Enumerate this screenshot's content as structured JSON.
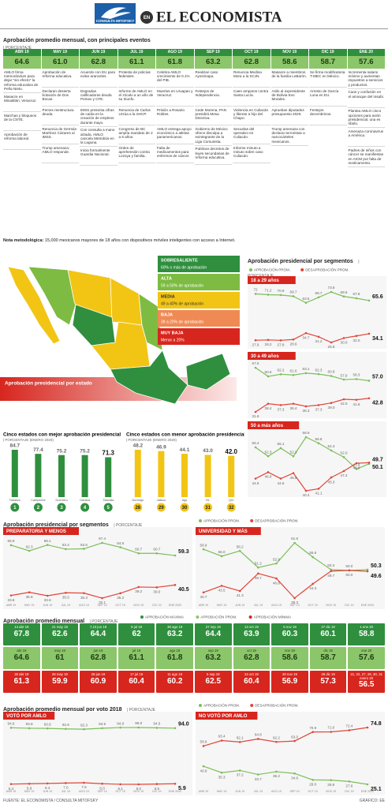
{
  "header": {
    "logo": "CONSULTA MITOFSKY",
    "en": "EN",
    "brand": "EL ECONOMISTA"
  },
  "events_table": {
    "title": "Aprobación promedio mensual, con principales eventos",
    "subtitle": "| PORCENTAJE",
    "months": [
      "ABR 19",
      "MAY 19",
      "JUN 19",
      "JUL 19",
      "AGO 19",
      "SEP 19",
      "OCT 19",
      "NOV 19",
      "DIC 19",
      "ENE 20"
    ],
    "values": [
      "64.6",
      "61.0",
      "62.8",
      "61.1",
      "61.8",
      "63.2",
      "62.8",
      "58.6",
      "58.7",
      "57.6"
    ],
    "events": [
      [
        "AMLO firma memorándum para dejar \"sin efecto\" la reforma educativa de Peña Nieto.",
        "Masacre en Minatitlán, Veracruz.",
        "Marchas y bloqueos de la CNTE.",
        "Aprobación de reforma laboral."
      ],
      [
        "Aprobación de reforma educativa.",
        "Declaran desierta licitación de Dos Bocas.",
        "Pemex reestructura deuda.",
        "Renuncia de Germán Martínez Cázares al IMSS.",
        "Trump amenaza; AMLO responde."
      ],
      [
        "Acuerdo con EU para evitar aranceles.",
        "Degradan calificadoras deuda Pemex y CFE.",
        "IMSS presenta cifras de caída en la creación de empleos durante mayo.",
        "Con consulta a mano alzada, AMLO cancela Metrobús en la Laguna.",
        "Inicia formalmente Guardia Nacional."
      ],
      [
        "Protesta de policías federales.",
        "Informe de AMLO en el zócalo a un año de su triunfo.",
        "Renuncia de Carlos Urzúa a la SHCP.",
        "Congreso de BC amplía mandato de 2 a 5 años.",
        "Orden de aprehensión contra Lozoya y familia."
      ],
      [
        "Celebra AMLO crecimiento de 0.1% del PIB.",
        "Muertos en Uruapan y Veracruz.",
        "Prisión a Rosario Robles.",
        "AMLO entrega apoyo económico a atletas panamericanos.",
        "Falta de medicamentos para enfermos de cáncer."
      ],
      [
        "Realizan caso Ayotzinapa.",
        "Festejos de Independencia.",
        "Cede Morena, PAN presidirá Mesa Directiva.",
        "Gobierno de México ofrece disculpa a exintegrante de la Liga Comunista.",
        "Publican decretos de leyes secundarias de reforma educativa."
      ],
      [
        "Renuncia Medina Mora a la SCJN.",
        "Caen amparos contra Santa Lucía.",
        "Violencia en Culiacán y liberan a hijo del Chapo.",
        "Secuelas del operativo en Culiacán.",
        "Informe minuto a minuto sobre caso Culiacán."
      ],
      [
        "Masacre a miembros de la familia LeBarón.",
        "Asilo al expresidente de Bolivia Evo Morales.",
        "Aprueban diputados presupuesto 2020.",
        "Trump amenaza con declarar terroristas a narcocárteles mexicanos."
      ],
      [
        "Se firma modificatoria T-MEC en México.",
        "Arresto de García Luna en EU.",
        "Festejos decembrinos."
      ],
      [
        "Incrementa salario mínimo y aumentan impuestos a servicios y productos.",
        "Caos y confusión en el arranque del Insabi.",
        "Plantea AMLO cinco opciones para avión presidencial, una es rifarlo.",
        "Amenaza coronavirus a América.",
        "Padres de niños con cáncer se manifiestan en AICM por falta de medicamento."
      ]
    ]
  },
  "note": {
    "label": "Nota metodológica:",
    "text": "15,000 mexicanos mayores de 18 años con dispositivos móviles inteligentes con acceso a Internet."
  },
  "map": {
    "title": "Aprobación presidencial por estado",
    "legend": [
      {
        "name": "SOBRESALIENTE",
        "range": "60% o más de aprobación",
        "color": "#2f8f3e"
      },
      {
        "name": "ALTA",
        "range": "59 a 50% de aprobación",
        "color": "#7dbb42"
      },
      {
        "name": "MEDIA",
        "range": "49 a 40% de aprobación",
        "color": "#f2c515"
      },
      {
        "name": "BAJA",
        "range": "39 a 20% de aprobación",
        "color": "#f08a55"
      },
      {
        "name": "MUY BAJA",
        "range": "Menor a 20%",
        "color": "#d7261e"
      }
    ]
  },
  "chart_data": [
    {
      "type": "line",
      "title": "Aprobación presidencial por segmentos",
      "subtitle": "| PORCENTAJE",
      "panel": "18 a 29 años",
      "series": [
        {
          "name": "APROBACIÓN PROM.",
          "color": "#7cbf5a",
          "values": [
            72,
            71.2,
            70.9,
            69.7,
            63.5,
            68.7,
            73.8,
            69.5,
            67.8,
            65.6
          ]
        },
        {
          "name": "DESAPROBACIÓN PROM.",
          "color": "#e0463a",
          "values": [
            27.9,
            28.2,
            27.8,
            28.6,
            34.7,
            31.2,
            25.8,
            30.0,
            32.0,
            34.1
          ],
          "value_labels": [
            "27.9",
            "28.2",
            "27.8",
            "28.6",
            "34.7",
            "31.2",
            "25.8",
            "30.0",
            "32.0",
            "34.1"
          ]
        }
      ]
    },
    {
      "type": "line",
      "panel": "30 a 49 años",
      "series": [
        {
          "name": "APROBACIÓN PROM.",
          "color": "#7cbf5a",
          "values": [
            67.5,
            60.5,
            62.2,
            61.6,
            63.1,
            62.3,
            60.8,
            57.9,
            58.3,
            57.0
          ],
          "value_labels": [
            "67.5",
            "60.5",
            "62.2",
            "61.6",
            "63.1",
            "62.3",
            "60.8",
            "57.9",
            "58.3",
            "57.0"
          ]
        },
        {
          "name": "DESAPROBACIÓN PROM.",
          "color": "#e0463a",
          "values": [
            31.8,
            38.4,
            37.3,
            38.4,
            36.3,
            37.3,
            39.0,
            42.0,
            41.6,
            42.8
          ],
          "value_labels": [
            "31.8",
            "38.4",
            "37.3",
            "38.4",
            "36.3",
            "37.3",
            "39.0",
            "42.0",
            "41.6",
            "42.8"
          ]
        }
      ]
    },
    {
      "type": "line",
      "panel": "50 a más años",
      "series": [
        {
          "name": "APROBACIÓN PROM.",
          "color": "#7cbf5a",
          "values": [
            55.4,
            52.3,
            55.1,
            52.3,
            58.9,
            56.8,
            54.3,
            52.0,
            47.9,
            49.7
          ],
          "value_labels": [
            "55.4",
            "52.3",
            "55.1",
            "52.3",
            "58.9",
            "56.8",
            "54.3",
            "52.0",
            "47.9",
            "49.7"
          ]
        },
        {
          "name": "DESAPROBACIÓN PROM.",
          "color": "#e0463a",
          "values": [
            44.6,
            46.8,
            44.6,
            46.5,
            40.4,
            41.1,
            45.0,
            47.2,
            49.9,
            50.1
          ],
          "value_labels": [
            "44.6",
            "46.8",
            "44.6",
            "46.5",
            "40.4",
            "41.1",
            "45.0",
            "47.2",
            "49.9",
            "50.1"
          ]
        }
      ]
    },
    {
      "type": "bar",
      "title": "Cinco estados con mejor aprobación presidencial",
      "subtitle": "| PORCENTAJE (ENERO 2020)",
      "categories": [
        "Tabasco",
        "Campeche",
        "Guerrero",
        "Oaxaca",
        "Tlaxcala"
      ],
      "ranks": [
        1,
        2,
        3,
        4,
        5
      ],
      "values": [
        84.7,
        77.4,
        75.2,
        75.2,
        71.3
      ],
      "color": "#2f8f3e"
    },
    {
      "type": "bar",
      "title": "Cinco estados con menor aprobación presidencial",
      "subtitle": "| PORCENTAJE (ENERO 2020)",
      "categories": [
        "Durango",
        "Jalisco",
        "Ags",
        "NL",
        "Qro"
      ],
      "ranks": [
        28,
        29,
        30,
        31,
        32
      ],
      "values": [
        48.2,
        46.9,
        44.1,
        43.0,
        42.0
      ],
      "value_labels": [
        "48.2",
        "46.9",
        "44.1",
        "43.0",
        "42.0"
      ],
      "color": "#f2c515"
    },
    {
      "type": "line",
      "title": "Aprobación presidencial por segmentos",
      "subtitle": "| PORCENTAJE",
      "panel": "PREPARATORIA Y MENOS",
      "categories": [
        "ABR 19",
        "MAY 19",
        "JUN 19",
        "JUL 19",
        "AGO 19",
        "SEP 19",
        "OCT 19",
        "NOV 19",
        "DIC 19",
        "ENE 2020"
      ],
      "series": [
        {
          "name": "APROBACIÓN PROM.",
          "color": "#7cbf5a",
          "values": [
            65.9,
            62.3,
            66.1,
            63.4,
            63.6,
            67.4,
            64.6,
            60.7,
            60.7,
            59.3
          ]
        },
        {
          "name": "DESAPROBACIÓN PROM.",
          "color": "#e0463a",
          "values": [
            33.8,
            35.8,
            33.6,
            35.5,
            35.3,
            32.1,
            35.2,
            39.2,
            39.0,
            40.5
          ],
          "value_labels": [
            "33.8",
            "35.8",
            "33.6",
            "35.5",
            "35.3",
            "32.1",
            "35.2",
            "39.2",
            "39.0",
            "40.5"
          ]
        }
      ]
    },
    {
      "type": "line",
      "panel": "UNIVERSIDAD Y MÁS",
      "categories": [
        "ABR 19",
        "MAY 19",
        "JUN 19",
        "JUL 19",
        "AGO 19",
        "SEP 19",
        "OCT 19",
        "NOV 19",
        "DIC 19",
        "ENE 2020"
      ],
      "series": [
        {
          "name": "APROBACIÓN PROM.",
          "color": "#7cbf5a",
          "values": [
            58.9,
            56.0,
            58.2,
            51.2,
            52.9,
            61.6,
            55.6,
            50.3,
            50.0,
            50.3
          ],
          "value_labels": [
            "58.9",
            "56.0",
            "58.2",
            "51.2",
            "52.9",
            "61.6",
            "55.6",
            "50.3",
            "50.0",
            "50.3"
          ]
        },
        {
          "name": "DESAPROBACIÓN PROM.",
          "color": "#e0463a",
          "values": [
            40.7,
            43.5,
            41.3,
            48.7,
            46.6,
            38.3,
            44.3,
            49.7,
            50.0,
            49.6
          ],
          "value_labels": [
            "40.7",
            "43.5",
            "41.3",
            "48.7",
            "46.6",
            "38.3",
            "44.3",
            "49.7",
            "50.0",
            "49.6"
          ]
        }
      ]
    },
    {
      "type": "line",
      "title": "Aprobación promedio mensual por voto 2018",
      "subtitle": "| PORCENTAJE",
      "panel": "VOTÓ POR AMLO",
      "categories": [
        "ABR 19",
        "MAY 19",
        "JUN 19",
        "JUL 19",
        "AGO 19",
        "SEP 19",
        "OCT 19",
        "NOV 19",
        "DIC 19",
        "ENE 2020"
      ],
      "series": [
        {
          "name": "APROBACIÓN PROM.",
          "color": "#7cbf5a",
          "values": [
            94.6,
            93.8,
            93.6,
            92.8,
            92.3,
            93.9,
            94.9,
            95.0,
            94.5,
            94.0
          ],
          "value_labels": [
            "94.6",
            "93.8",
            "93.6",
            "92.8",
            "92.3",
            "93.9",
            "94.9",
            "95.0",
            "94.5",
            "94.0"
          ]
        },
        {
          "name": "DESAPROBACIÓN PROM.",
          "color": "#e0463a",
          "values": [
            5.4,
            5.9,
            6.4,
            7.0,
            7.5,
            6.0,
            5.1,
            5.0,
            5.5,
            5.9
          ],
          "value_labels": [
            "5.4",
            "5.9",
            "6.4",
            "7.0",
            "7.5",
            "6.0",
            "5.1",
            "5.0",
            "5.5",
            "5.9"
          ]
        }
      ]
    },
    {
      "type": "line",
      "panel": "NO VOTÓ POR AMLO",
      "categories": [
        "ABR 19",
        "MAY 19",
        "JUN 19",
        "JUL 19",
        "AGO 19",
        "SEP 19",
        "OCT 19",
        "NOV 19",
        "DIC 19",
        "ENE 2020"
      ],
      "series": [
        {
          "name": "APROBACIÓN PROM.",
          "color": "#7cbf5a",
          "values": [
            40.9,
            35.3,
            37.2,
            33.7,
            36.2,
            34.6,
            29.0,
            28.8,
            27.6,
            25.1
          ],
          "value_labels": [
            "40.9",
            "35.3",
            "37.2",
            "33.7",
            "36.2",
            "34.6",
            "29.0",
            "28.8",
            "27.6",
            "25.1"
          ]
        },
        {
          "name": "DESAPROBACIÓN PROM.",
          "color": "#e0463a",
          "values": [
            58.6,
            63.4,
            62.1,
            64.8,
            62.2,
            63.0,
            70.9,
            71.0,
            72.4,
            74.8
          ],
          "value_labels": [
            "58.6",
            "63.4",
            "62.1",
            "64.8",
            "62.2",
            "63.0",
            "70.9",
            "71.0",
            "72.4",
            "74.8"
          ]
        }
      ]
    }
  ],
  "tiles": {
    "title": "Aprobación promedio mensual",
    "subtitle": "| PORCENTAJE",
    "legend": [
      {
        "name": "APROBACIÓN MÁXIMA",
        "color": "#2f8f3e"
      },
      {
        "name": "APROBACIÓN PROM.",
        "color": "#8cc66a"
      },
      {
        "name": "APROBACIÓN MÍNIMA",
        "color": "#d7261e"
      }
    ],
    "rows": [
      [
        {
          "date": "14 abr 19",
          "value": "67.8"
        },
        {
          "date": "21 may 19",
          "value": "62.6"
        },
        {
          "date": "7,10 jun 19",
          "value": "64.4"
        },
        {
          "date": "9 jul 19",
          "value": "62"
        },
        {
          "date": "30 ago 19",
          "value": "63.2"
        },
        {
          "date": "27 sep 19",
          "value": "64.4"
        },
        {
          "date": "13 oct 19",
          "value": "63.9"
        },
        {
          "date": "5 nov 19",
          "value": "60.3"
        },
        {
          "date": "27 dic 19",
          "value": "60.1"
        },
        {
          "date": "1 ene 20",
          "value": "58.8"
        }
      ],
      [
        {
          "date": "abr 19",
          "value": "64.6"
        },
        {
          "date": "may 19",
          "value": "61"
        },
        {
          "date": "jun 19",
          "value": "62.8"
        },
        {
          "date": "jul 19",
          "value": "61.1"
        },
        {
          "date": "ago 19",
          "value": "61.8"
        },
        {
          "date": "sep 19",
          "value": "63.2"
        },
        {
          "date": "oct 19",
          "value": "62.8"
        },
        {
          "date": "nov 19",
          "value": "58.6"
        },
        {
          "date": "dic 19",
          "value": "58.7"
        },
        {
          "date": "ene 20",
          "value": "57.6"
        }
      ],
      [
        {
          "date": "30 abr 19",
          "value": "61.3"
        },
        {
          "date": "28 may 19",
          "value": "59.9"
        },
        {
          "date": "29 jun 19",
          "value": "60.9"
        },
        {
          "date": "17 jul 19",
          "value": "60.4"
        },
        {
          "date": "11 ago 19",
          "value": "60.2"
        },
        {
          "date": "6 sep 19",
          "value": "62.5"
        },
        {
          "date": "24 oct 19",
          "value": "60.4"
        },
        {
          "date": "30 nov 19",
          "value": "56.9"
        },
        {
          "date": "28 dic 19",
          "value": "57.3"
        },
        {
          "date": "21, 22, 27, 28, 30, 31 enero 20",
          "value": "56.5"
        }
      ]
    ]
  },
  "footer": {
    "source": "FUENTE: EL ECONOMISTA / CONSULTA MITOFSKY",
    "credit": "GRÁFICO: EE"
  }
}
